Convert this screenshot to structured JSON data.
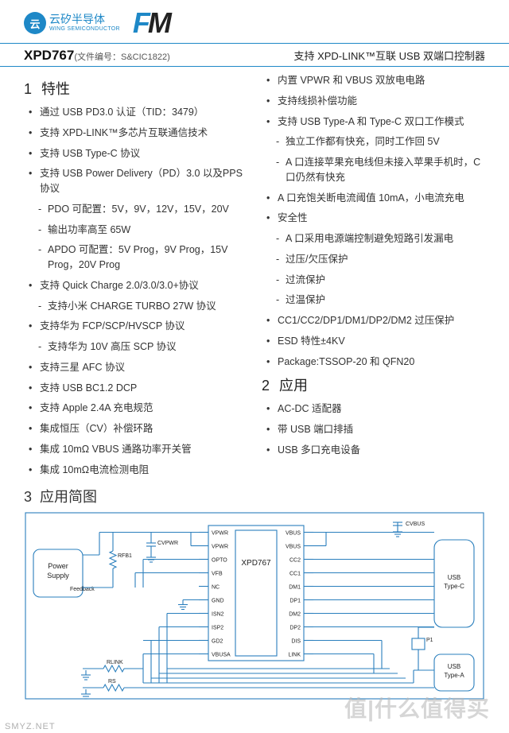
{
  "header": {
    "wing_logo_mark": "云",
    "wing_cn": "云矽半导体",
    "wing_en": "WING SEMICONDUCTOR",
    "fm_f": "F",
    "fm_m": "M"
  },
  "title": {
    "part_no": "XPD767",
    "doc_no": "(文件编号：S&CIC1822)",
    "product_desc": "支持 XPD-LINK™互联 USB 双端口控制器"
  },
  "sections": {
    "features_head": "特性",
    "features_num": "1",
    "app_head": "应用",
    "app_num": "2",
    "diagram_head": "应用简图",
    "diagram_num": "3"
  },
  "left_items": [
    {
      "t": "通过 USB PD3.0 认证（TID：3479）"
    },
    {
      "t": "支持 XPD-LINK™多芯片互联通信技术"
    },
    {
      "t": "支持 USB Type-C 协议"
    },
    {
      "t": "支持 USB Power Delivery（PD）3.0 以及PPS 协议"
    },
    {
      "t": "PDO 可配置：5V，9V，12V，15V，20V",
      "sub": true
    },
    {
      "t": "输出功率高至 65W",
      "sub": true
    },
    {
      "t": "APDO 可配置：5V Prog，9V Prog，15V Prog，20V Prog",
      "sub": true
    },
    {
      "t": "支持 Quick Charge 2.0/3.0/3.0+协议"
    },
    {
      "t": "支持小米 CHARGE TURBO 27W 协议",
      "sub": true
    },
    {
      "t": "支持华为 FCP/SCP/HVSCP 协议"
    },
    {
      "t": "支持华为 10V 高压 SCP 协议",
      "sub": true
    },
    {
      "t": "支持三星 AFC 协议"
    },
    {
      "t": "支持 USB BC1.2 DCP"
    },
    {
      "t": "支持 Apple 2.4A 充电规范"
    },
    {
      "t": "集成恒压（CV）补偿环路"
    },
    {
      "t": "集成 10mΩ  VBUS 通路功率开关管"
    },
    {
      "t": "集成 10mΩ电流检测电阻"
    }
  ],
  "right_items": [
    {
      "t": "内置 VPWR 和 VBUS 双放电电路"
    },
    {
      "t": "支持线损补偿功能"
    },
    {
      "t": "支持 USB Type-A 和 Type-C 双口工作模式"
    },
    {
      "t": "独立工作都有快充，同时工作回 5V",
      "sub": true
    },
    {
      "t": "A 口连接苹果充电线但未接入苹果手机时，C 口仍然有快充",
      "sub": true
    },
    {
      "t": "A 口充饱关断电流阈值 10mA，小电流充电"
    },
    {
      "t": "安全性"
    },
    {
      "t": "A 口采用电源端控制避免短路引发漏电",
      "sub": true
    },
    {
      "t": "过压/欠压保护",
      "sub": true
    },
    {
      "t": "过流保护",
      "sub": true
    },
    {
      "t": "过温保护",
      "sub": true
    },
    {
      "t": "CC1/CC2/DP1/DM1/DP2/DM2 过压保护"
    },
    {
      "t": "ESD 特性±4KV"
    },
    {
      "t": "Package:TSSOP-20 和 QFN20"
    }
  ],
  "apps": [
    {
      "t": "AC-DC 适配器"
    },
    {
      "t": "带 USB 端口排插"
    },
    {
      "t": "USB 多口充电设备"
    }
  ],
  "diagram": {
    "chip": "XPD767",
    "left_pins": [
      "VPWR",
      "VPWR",
      "OPTO",
      "VFB",
      "NC",
      "GND",
      "ISN2",
      "ISP2",
      "GD2",
      "VBUSA"
    ],
    "right_pins": [
      "VBUS",
      "VBUS",
      "CC2",
      "CC1",
      "DM1",
      "DP1",
      "DM2",
      "DP2",
      "DIS",
      "LINK"
    ],
    "power_supply": "Power\nSupply",
    "feedback": "Feedback",
    "rfb1": "RFB1",
    "cvpwr": "CVPWR",
    "cvbus": "CVBUS",
    "rlink": "RLINK",
    "rs": "RS",
    "p1": "P1",
    "usb_c": "USB\nType-C",
    "usb_a": "USB\nType-A",
    "line_color": "#2a7fbd",
    "stroke_w": 1.1
  },
  "watermark": {
    "brand": "值|什么值得买",
    "slogan": ""
  },
  "smyz": "SMYZ.NET"
}
